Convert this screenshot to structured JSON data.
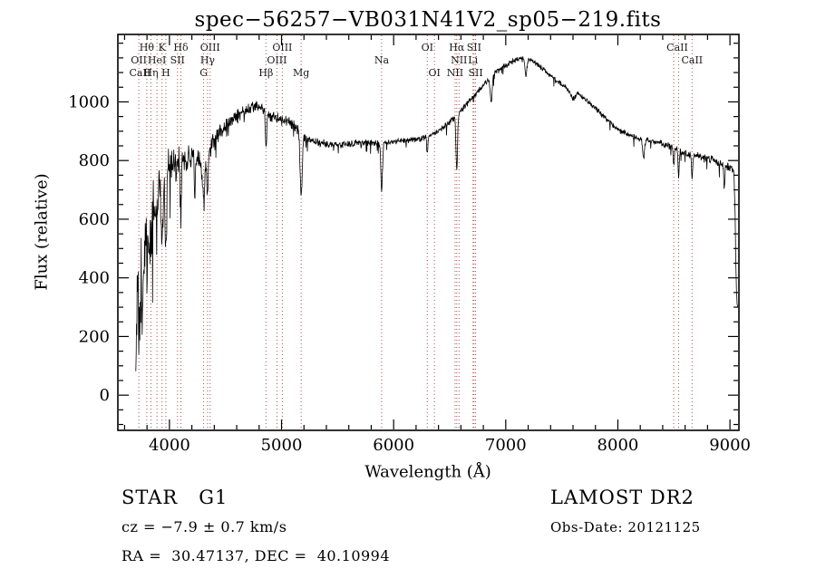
{
  "title": "spec−56257−VB031N41V2_sp05−219.fits",
  "footer": {
    "class_label": "STAR   G1",
    "cz": "cz = −7.9 ± 0.7 km/s",
    "radec": "RA =  30.47137, DEC =  40.10994",
    "survey": "LAMOST DR2",
    "obs_date": "Obs-Date: 20121125"
  },
  "chart_data": {
    "type": "line",
    "title": "spec−56257−VB031N41V2_sp05−219.fits",
    "xlabel": "Wavelength (Å)",
    "ylabel": "Flux (relative)",
    "xlim": [
      3540,
      9080
    ],
    "ylim": [
      -120,
      1230
    ],
    "x_ticks": [
      4000,
      5000,
      6000,
      7000,
      8000,
      9000
    ],
    "y_ticks": [
      0,
      200,
      400,
      600,
      800,
      1000
    ],
    "x_minor_step": 200,
    "y_minor_step": 50,
    "grid": false,
    "legend": "none",
    "line_color": "#000000",
    "marker_line_color": "#b05050",
    "noise_seed": 20121125,
    "sample_step": 3,
    "x_range": [
      3700,
      9072
    ],
    "envelope": [
      [
        3700,
        210
      ],
      [
        3730,
        300
      ],
      [
        3760,
        380
      ],
      [
        3790,
        470
      ],
      [
        3820,
        560
      ],
      [
        3850,
        620
      ],
      [
        3880,
        660
      ],
      [
        3910,
        700
      ],
      [
        3940,
        720
      ],
      [
        3970,
        730
      ],
      [
        4000,
        770
      ],
      [
        4050,
        790
      ],
      [
        4100,
        800
      ],
      [
        4150,
        805
      ],
      [
        4200,
        815
      ],
      [
        4250,
        800
      ],
      [
        4300,
        790
      ],
      [
        4350,
        830
      ],
      [
        4400,
        870
      ],
      [
        4450,
        895
      ],
      [
        4500,
        915
      ],
      [
        4550,
        930
      ],
      [
        4600,
        950
      ],
      [
        4650,
        965
      ],
      [
        4700,
        975
      ],
      [
        4750,
        985
      ],
      [
        4800,
        985
      ],
      [
        4850,
        975
      ],
      [
        4900,
        950
      ],
      [
        4950,
        945
      ],
      [
        5000,
        940
      ],
      [
        5050,
        935
      ],
      [
        5100,
        925
      ],
      [
        5150,
        900
      ],
      [
        5200,
        880
      ],
      [
        5250,
        870
      ],
      [
        5300,
        865
      ],
      [
        5350,
        860
      ],
      [
        5400,
        858
      ],
      [
        5450,
        856
      ],
      [
        5500,
        855
      ],
      [
        5550,
        855
      ],
      [
        5600,
        856
      ],
      [
        5650,
        858
      ],
      [
        5700,
        860
      ],
      [
        5800,
        862
      ],
      [
        5900,
        858
      ],
      [
        6000,
        862
      ],
      [
        6100,
        868
      ],
      [
        6200,
        872
      ],
      [
        6300,
        880
      ],
      [
        6400,
        900
      ],
      [
        6500,
        930
      ],
      [
        6600,
        970
      ],
      [
        6700,
        1015
      ],
      [
        6800,
        1058
      ],
      [
        6900,
        1098
      ],
      [
        7000,
        1125
      ],
      [
        7080,
        1143
      ],
      [
        7150,
        1150
      ],
      [
        7220,
        1142
      ],
      [
        7300,
        1122
      ],
      [
        7400,
        1090
      ],
      [
        7500,
        1058
      ],
      [
        7560,
        1042
      ],
      [
        7600,
        1008
      ],
      [
        7640,
        1030
      ],
      [
        7700,
        1012
      ],
      [
        7800,
        978
      ],
      [
        7900,
        940
      ],
      [
        8000,
        905
      ],
      [
        8100,
        888
      ],
      [
        8200,
        872
      ],
      [
        8300,
        866
      ],
      [
        8400,
        856
      ],
      [
        8500,
        842
      ],
      [
        8600,
        826
      ],
      [
        8700,
        815
      ],
      [
        8800,
        806
      ],
      [
        8900,
        792
      ],
      [
        8960,
        784
      ],
      [
        9010,
        772
      ],
      [
        9035,
        755
      ],
      [
        9045,
        640
      ],
      [
        9052,
        450
      ],
      [
        9060,
        330
      ],
      [
        9070,
        305
      ]
    ],
    "noise_profile": [
      [
        3700,
        280
      ],
      [
        3740,
        250
      ],
      [
        3780,
        200
      ],
      [
        3820,
        170
      ],
      [
        3860,
        150
      ],
      [
        3900,
        135
      ],
      [
        3950,
        110
      ],
      [
        4000,
        85
      ],
      [
        4100,
        65
      ],
      [
        4200,
        55
      ],
      [
        4300,
        48
      ],
      [
        4400,
        38
      ],
      [
        4500,
        30
      ],
      [
        4700,
        26
      ],
      [
        4900,
        24
      ],
      [
        5100,
        22
      ],
      [
        5300,
        17
      ],
      [
        5500,
        14
      ],
      [
        5800,
        13
      ],
      [
        6100,
        12
      ],
      [
        6400,
        12
      ],
      [
        6700,
        12
      ],
      [
        7000,
        11
      ],
      [
        7300,
        10
      ],
      [
        7600,
        11
      ],
      [
        8000,
        11
      ],
      [
        8300,
        13
      ],
      [
        8600,
        15
      ],
      [
        8800,
        17
      ],
      [
        9000,
        16
      ],
      [
        9072,
        14
      ]
    ],
    "absorption_dips": [
      [
        3835,
        120,
        6
      ],
      [
        3889,
        100,
        6
      ],
      [
        3934,
        240,
        7
      ],
      [
        3968,
        210,
        7
      ],
      [
        4102,
        170,
        6
      ],
      [
        4226,
        110,
        5
      ],
      [
        4305,
        110,
        10
      ],
      [
        4340,
        140,
        6
      ],
      [
        4861,
        135,
        6
      ],
      [
        5175,
        215,
        9
      ],
      [
        5893,
        165,
        7
      ],
      [
        6300,
        55,
        5
      ],
      [
        6563,
        185,
        7
      ],
      [
        6870,
        85,
        9
      ],
      [
        7180,
        60,
        8
      ],
      [
        8230,
        60,
        8
      ],
      [
        8498,
        60,
        5
      ],
      [
        8542,
        85,
        5
      ],
      [
        8662,
        85,
        5
      ],
      [
        8950,
        70,
        5
      ]
    ],
    "marker_wavelengths": [
      3727,
      3798,
      3835,
      3889,
      3934,
      3968,
      4072,
      4102,
      4305,
      4340,
      4363,
      4861,
      4959,
      5007,
      5175,
      5893,
      6300,
      6364,
      6548,
      6563,
      6583,
      6708,
      6717,
      6731,
      8498,
      8542,
      8662
    ],
    "spectral_lines": [
      {
        "label": "Hθ",
        "wavelength": 3798,
        "row": 0
      },
      {
        "label": "K",
        "wavelength": 3934,
        "row": 0
      },
      {
        "label": "Hδ",
        "wavelength": 4102,
        "row": 0
      },
      {
        "label": "OIII",
        "wavelength": 4363,
        "row": 0
      },
      {
        "label": "OIII",
        "wavelength": 5007,
        "row": 0
      },
      {
        "label": "OI",
        "wavelength": 6300,
        "row": 0
      },
      {
        "label": "Hα",
        "wavelength": 6563,
        "row": 0
      },
      {
        "label": "SII",
        "wavelength": 6717,
        "row": 0
      },
      {
        "label": "CaII",
        "wavelength": 8530,
        "row": 0
      },
      {
        "label": "OII",
        "wavelength": 3727,
        "row": 1
      },
      {
        "label": "HeI",
        "wavelength": 3889,
        "row": 1
      },
      {
        "label": "SII",
        "wavelength": 4072,
        "row": 1
      },
      {
        "label": "Hγ",
        "wavelength": 4340,
        "row": 1
      },
      {
        "label": "OIII",
        "wavelength": 4959,
        "row": 1
      },
      {
        "label": "Na",
        "wavelength": 5893,
        "row": 1
      },
      {
        "label": "NII",
        "wavelength": 6583,
        "row": 1
      },
      {
        "label": "Li",
        "wavelength": 6708,
        "row": 1
      },
      {
        "label": "CaII",
        "wavelength": 8662,
        "row": 1
      },
      {
        "label": "CaII",
        "wavelength": 3737,
        "row": 2
      },
      {
        "label": "Hη",
        "wavelength": 3835,
        "row": 2
      },
      {
        "label": "H",
        "wavelength": 3968,
        "row": 2
      },
      {
        "label": "G",
        "wavelength": 4305,
        "row": 2
      },
      {
        "label": "Hβ",
        "wavelength": 4861,
        "row": 2
      },
      {
        "label": "Mg",
        "wavelength": 5175,
        "row": 2
      },
      {
        "label": "OI",
        "wavelength": 6364,
        "row": 2
      },
      {
        "label": "NII",
        "wavelength": 6548,
        "row": 2
      },
      {
        "label": "SII",
        "wavelength": 6731,
        "row": 2
      }
    ]
  }
}
